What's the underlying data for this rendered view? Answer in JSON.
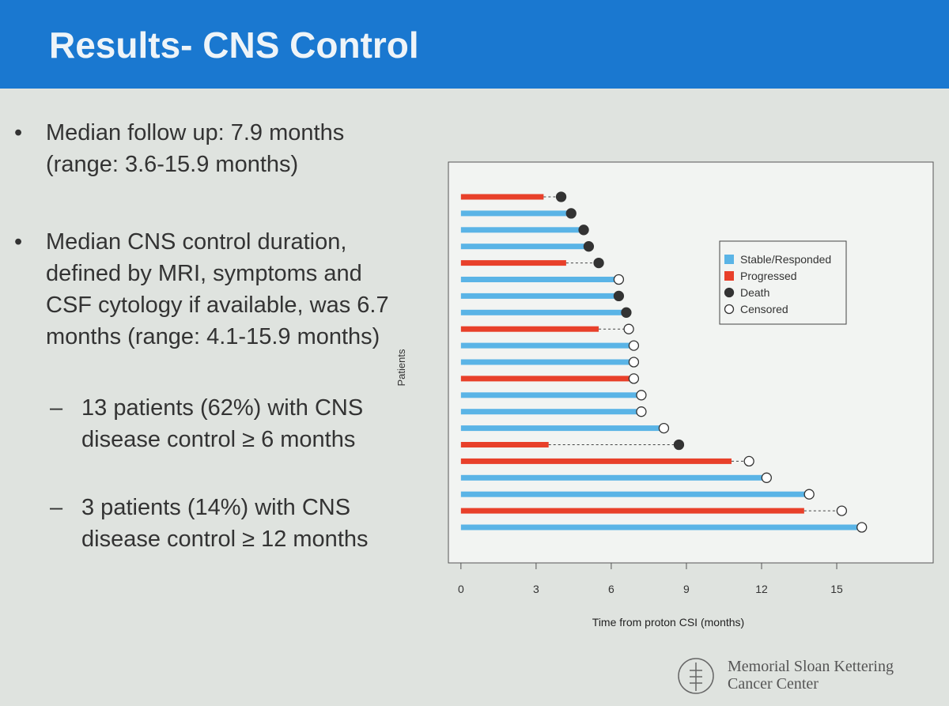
{
  "slide": {
    "title": "Results- CNS Control",
    "bullets": [
      {
        "marker": "•",
        "text": "Median follow up: 7.9 months (range: 3.6-15.9 months)"
      },
      {
        "marker": "•",
        "text": "Median CNS control duration, defined by MRI, symptoms and CSF cytology if available, was 6.7 months (range: 4.1-15.9 months)"
      },
      {
        "marker": "–",
        "text": "13 patients (62%) with CNS disease control ≥ 6 months"
      },
      {
        "marker": "–",
        "text": "3 patients (14%) with CNS disease control ≥ 12 months"
      }
    ],
    "logo": [
      "Memorial Sloan Kettering",
      "Cancer Center"
    ]
  },
  "chart_data": {
    "type": "swimmer",
    "xlabel": "Time from proton CSI (months)",
    "ylabel": "Patients",
    "xlim": [
      -0.5,
      18.85
    ],
    "xticks": [
      0,
      3,
      6,
      9,
      12,
      15
    ],
    "legend_position": "upper right",
    "series": [
      {
        "name": "Stable/Responded",
        "color": "#5ab4e6",
        "mark": "bar",
        "values": [
          null,
          4.4,
          4.9,
          5.1,
          null,
          6.3,
          6.3,
          6.6,
          null,
          6.9,
          6.9,
          null,
          7.2,
          7.2,
          8.1,
          null,
          null,
          12.2,
          13.9,
          null,
          16.0
        ]
      },
      {
        "name": "Progressed",
        "color": "#e8402a",
        "mark": "bar",
        "values": [
          3.3,
          null,
          null,
          null,
          4.2,
          null,
          null,
          null,
          5.5,
          null,
          null,
          6.8,
          null,
          null,
          null,
          3.5,
          10.8,
          null,
          null,
          13.7,
          null
        ]
      },
      {
        "name": "Death",
        "color": "#333333",
        "mark": "filled-circle",
        "values": [
          4.0,
          4.4,
          4.9,
          5.1,
          5.5,
          null,
          6.3,
          6.6,
          null,
          null,
          null,
          null,
          null,
          null,
          null,
          8.7,
          null,
          null,
          null,
          null,
          null
        ]
      },
      {
        "name": "Censored",
        "color": "#333333",
        "mark": "open-circle",
        "values": [
          null,
          null,
          null,
          null,
          null,
          6.3,
          null,
          null,
          6.7,
          6.9,
          6.9,
          6.9,
          7.2,
          7.2,
          8.1,
          null,
          11.5,
          12.2,
          13.9,
          15.2,
          16.0
        ]
      }
    ]
  }
}
